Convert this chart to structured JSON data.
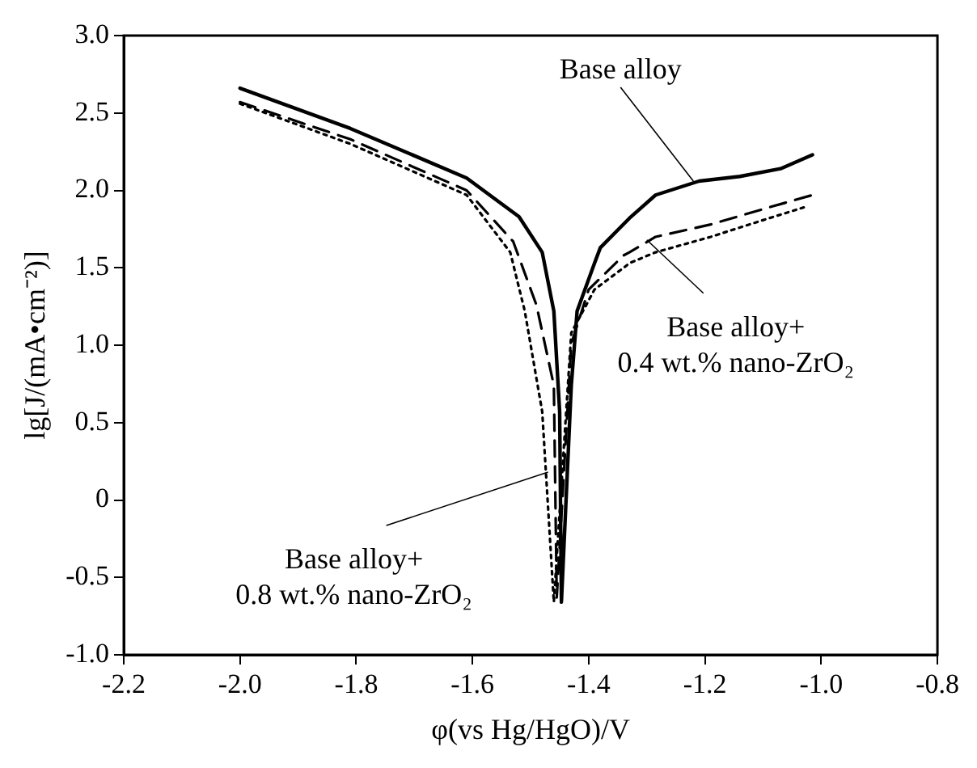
{
  "chart_data": {
    "type": "line",
    "xlabel": "φ(vs Hg/HgO)/V",
    "ylabel": "lg[J/(mA•cm⁻²)]",
    "xlim": [
      -2.2,
      -0.8
    ],
    "xticks": [
      -2.2,
      {
        "value": -2,
        "label": "-2.0"
      },
      -1.8,
      -1.6,
      -1.4,
      -1.2,
      {
        "value": -1,
        "label": "-1.0"
      },
      -0.8
    ],
    "ylim": [
      -1.0,
      3.0
    ],
    "yticks": [
      {
        "value": -1,
        "label": "-1.0"
      },
      -0.5,
      0,
      0.5,
      {
        "value": 1,
        "label": "1.0"
      },
      1.5,
      {
        "value": 2,
        "label": "2.0"
      },
      2.5,
      {
        "value": 3,
        "label": "3.0"
      }
    ],
    "grid": false,
    "legend": false,
    "marker": "none",
    "series": [
      {
        "color": "#000000",
        "line_style": "solid",
        "x": [
          -2.0,
          -1.81,
          -1.61,
          -1.52,
          -1.48,
          -1.46,
          -1.45,
          -1.447,
          -1.43,
          -1.42,
          -1.39,
          -1.38,
          -1.33,
          -1.285,
          -1.21,
          -1.14,
          -1.07,
          -1.015
        ],
        "values": [
          2.66,
          2.4,
          2.08,
          1.83,
          1.6,
          1.22,
          0.57,
          -0.66,
          0.74,
          1.22,
          1.53,
          1.63,
          1.82,
          1.97,
          2.06,
          2.09,
          2.14,
          2.23
        ]
      },
      {
        "color": "#000000",
        "line_style": "dashed",
        "x": [
          -2.0,
          -1.81,
          -1.61,
          -1.53,
          -1.49,
          -1.46,
          -1.455,
          -1.43,
          -1.4,
          -1.34,
          -1.33,
          -1.285,
          -1.19,
          -1.09,
          -1.015
        ],
        "values": [
          2.57,
          2.33,
          2.0,
          1.67,
          1.26,
          0.74,
          -0.63,
          1.01,
          1.36,
          1.58,
          1.6,
          1.7,
          1.78,
          1.89,
          1.97
        ]
      },
      {
        "color": "#000000",
        "line_style": "dotted",
        "x": [
          -2.0,
          -1.81,
          -1.61,
          -1.535,
          -1.51,
          -1.48,
          -1.46,
          -1.43,
          -1.39,
          -1.34,
          -1.33,
          -1.285,
          -1.19,
          -1.09,
          -1.03
        ],
        "values": [
          2.56,
          2.3,
          1.97,
          1.6,
          1.22,
          0.57,
          -0.66,
          1.08,
          1.36,
          1.5,
          1.53,
          1.6,
          1.7,
          1.82,
          1.89
        ]
      }
    ],
    "annotations": [
      {
        "text": "Base alloy",
        "x": -1.22,
        "y": 2.06
      },
      {
        "text": "Base alloy+\n0.4 wt.% nano-ZrO₂",
        "x": -1.3,
        "y": 1.68
      },
      {
        "text": "Base alloy+\n0.8 wt.% nano-ZrO₂",
        "x": -1.47,
        "y": 0.18
      }
    ]
  }
}
